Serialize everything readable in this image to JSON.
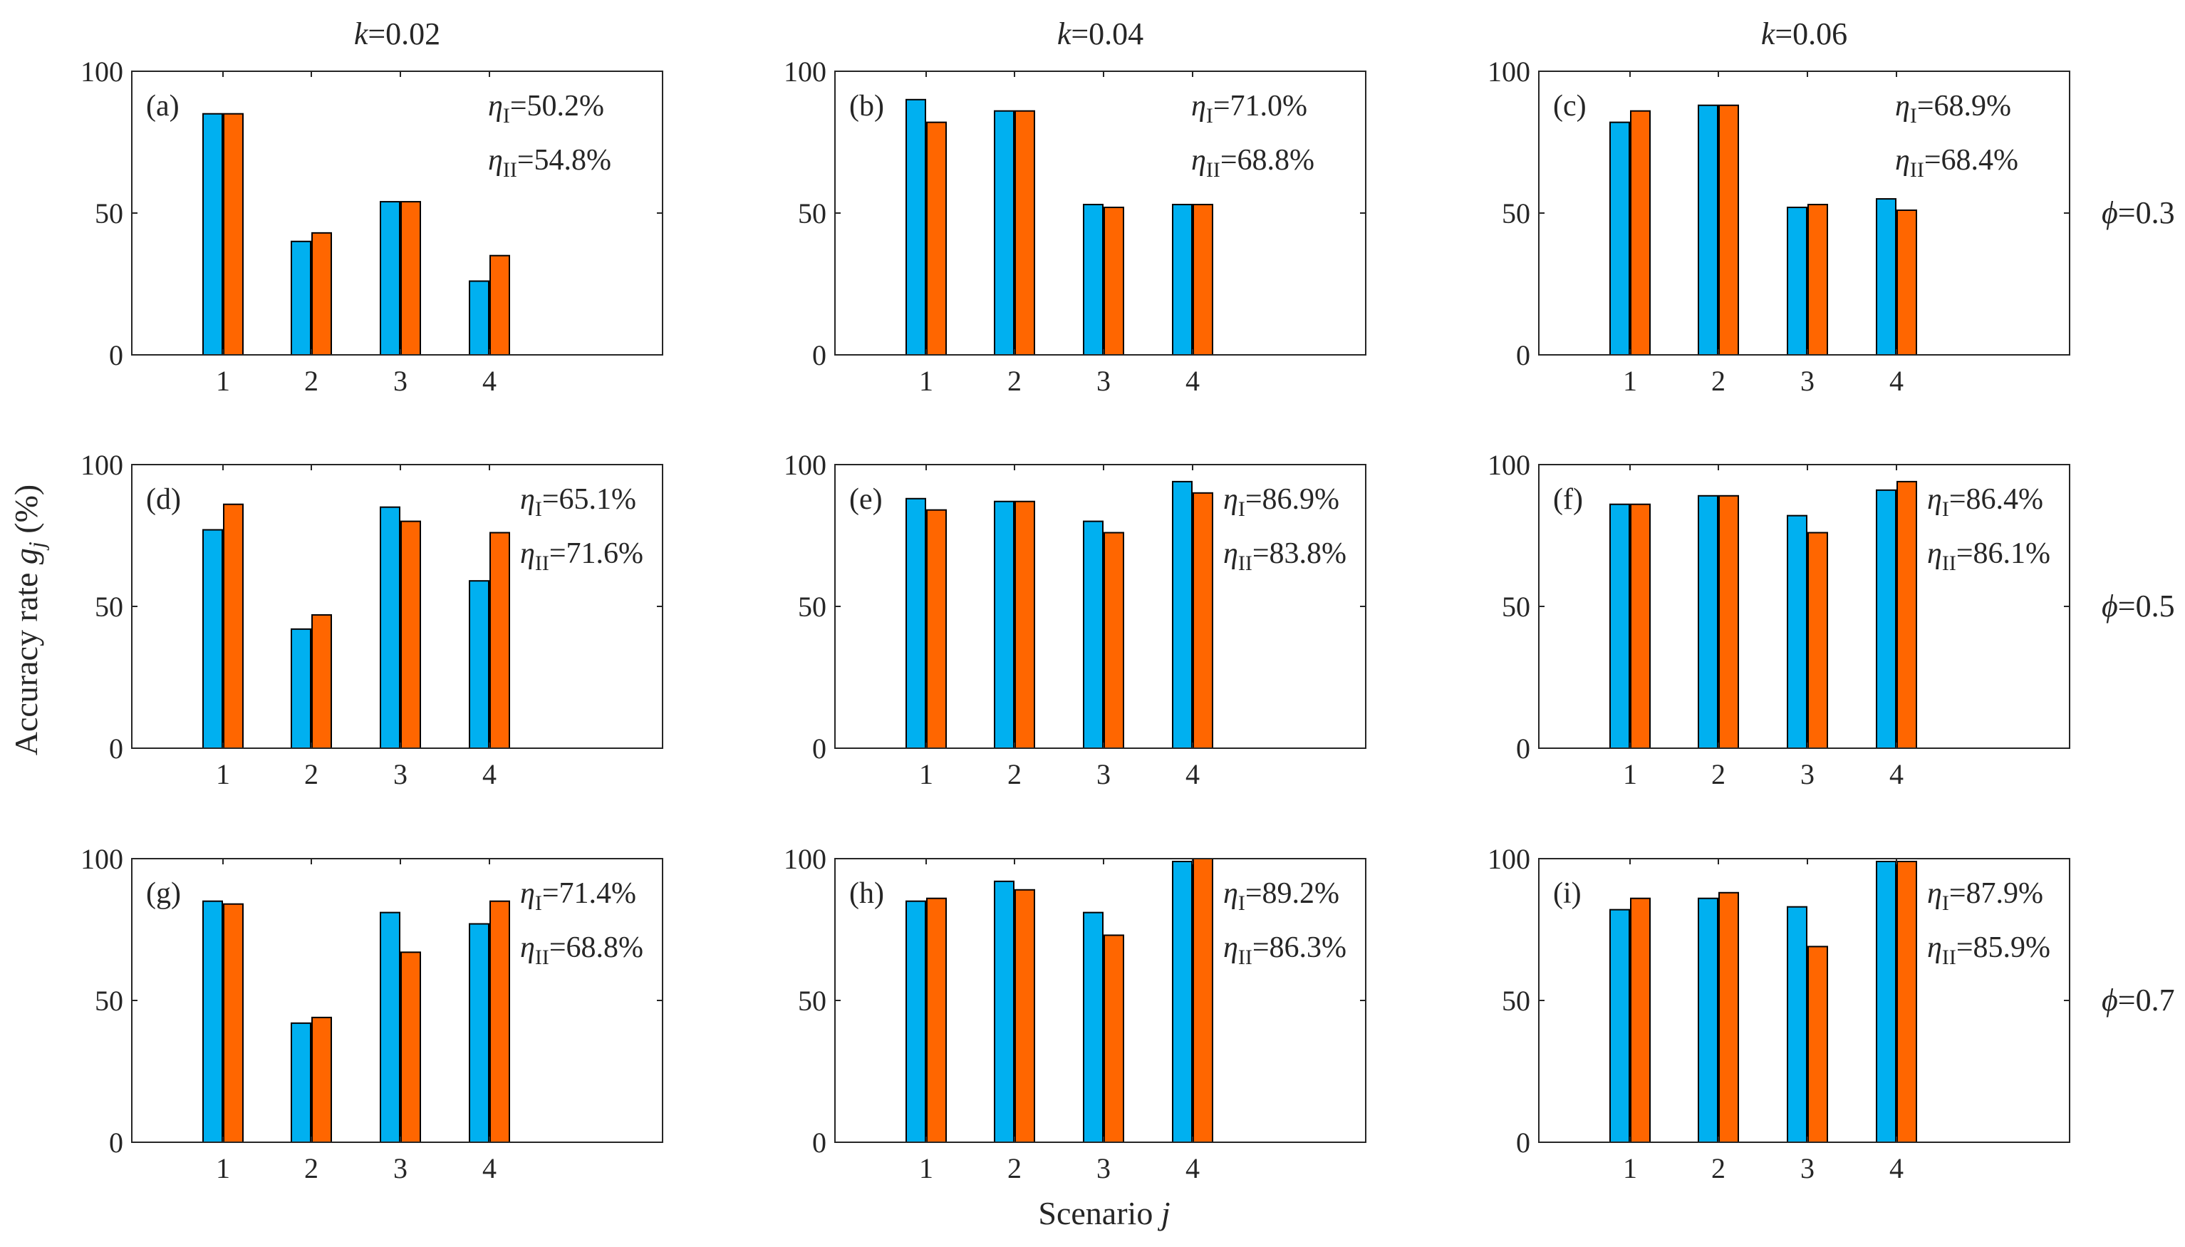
{
  "figure": {
    "ylabel": "Accuracy rate ",
    "ylabel_var": "g",
    "ylabel_sub": "j",
    "ylabel_unit": " (%)",
    "xlabel": "Scenario ",
    "xlabel_var": "j",
    "col_titles": [
      {
        "var": "k",
        "text": "=0.02"
      },
      {
        "var": "k",
        "text": "=0.04"
      },
      {
        "var": "k",
        "text": "=0.06"
      }
    ],
    "row_labels": [
      {
        "var": "ϕ",
        "text": "=0.3"
      },
      {
        "var": "ϕ",
        "text": "=0.5"
      },
      {
        "var": "ϕ",
        "text": "=0.7"
      }
    ],
    "colors": {
      "series1": "#00b0f0",
      "series2": "#ff6600",
      "edge": "#000000"
    }
  },
  "chart_data": [
    {
      "type": "bar",
      "panel": "(a)",
      "categories": [
        "1",
        "2",
        "3",
        "4"
      ],
      "ylim": [
        0,
        100
      ],
      "yticks": [
        "0",
        "50",
        "100"
      ],
      "series": [
        {
          "name": "η_I",
          "values": [
            85,
            40,
            54,
            26
          ]
        },
        {
          "name": "η_II",
          "values": [
            85,
            43,
            54,
            35
          ]
        }
      ],
      "eta_I": "=50.2%",
      "eta_II": "=54.8%"
    },
    {
      "type": "bar",
      "panel": "(b)",
      "categories": [
        "1",
        "2",
        "3",
        "4"
      ],
      "ylim": [
        0,
        100
      ],
      "yticks": [
        "0",
        "50",
        "100"
      ],
      "series": [
        {
          "name": "η_I",
          "values": [
            90,
            86,
            53,
            53
          ]
        },
        {
          "name": "η_II",
          "values": [
            82,
            86,
            52,
            53
          ]
        }
      ],
      "eta_I": "=71.0%",
      "eta_II": "=68.8%"
    },
    {
      "type": "bar",
      "panel": "(c)",
      "categories": [
        "1",
        "2",
        "3",
        "4"
      ],
      "ylim": [
        0,
        100
      ],
      "yticks": [
        "0",
        "50",
        "100"
      ],
      "series": [
        {
          "name": "η_I",
          "values": [
            82,
            88,
            52,
            55
          ]
        },
        {
          "name": "η_II",
          "values": [
            86,
            88,
            53,
            51
          ]
        }
      ],
      "eta_I": "=68.9%",
      "eta_II": "=68.4%"
    },
    {
      "type": "bar",
      "panel": "(d)",
      "categories": [
        "1",
        "2",
        "3",
        "4"
      ],
      "ylim": [
        0,
        100
      ],
      "yticks": [
        "0",
        "50",
        "100"
      ],
      "series": [
        {
          "name": "η_I",
          "values": [
            77,
            42,
            85,
            59
          ]
        },
        {
          "name": "η_II",
          "values": [
            86,
            47,
            80,
            76
          ]
        }
      ],
      "eta_I": "=65.1%",
      "eta_II": "=71.6%"
    },
    {
      "type": "bar",
      "panel": "(e)",
      "categories": [
        "1",
        "2",
        "3",
        "4"
      ],
      "ylim": [
        0,
        100
      ],
      "yticks": [
        "0",
        "50",
        "100"
      ],
      "series": [
        {
          "name": "η_I",
          "values": [
            88,
            87,
            80,
            94
          ]
        },
        {
          "name": "η_II",
          "values": [
            84,
            87,
            76,
            90
          ]
        }
      ],
      "eta_I": "=86.9%",
      "eta_II": "=83.8%"
    },
    {
      "type": "bar",
      "panel": "(f)",
      "categories": [
        "1",
        "2",
        "3",
        "4"
      ],
      "ylim": [
        0,
        100
      ],
      "yticks": [
        "0",
        "50",
        "100"
      ],
      "series": [
        {
          "name": "η_I",
          "values": [
            86,
            89,
            82,
            91
          ]
        },
        {
          "name": "η_II",
          "values": [
            86,
            89,
            76,
            94
          ]
        }
      ],
      "eta_I": "=86.4%",
      "eta_II": "=86.1%"
    },
    {
      "type": "bar",
      "panel": "(g)",
      "categories": [
        "1",
        "2",
        "3",
        "4"
      ],
      "ylim": [
        0,
        100
      ],
      "yticks": [
        "0",
        "50",
        "100"
      ],
      "series": [
        {
          "name": "η_I",
          "values": [
            85,
            42,
            81,
            77
          ]
        },
        {
          "name": "η_II",
          "values": [
            84,
            44,
            67,
            85
          ]
        }
      ],
      "eta_I": "=71.4%",
      "eta_II": "=68.8%"
    },
    {
      "type": "bar",
      "panel": "(h)",
      "categories": [
        "1",
        "2",
        "3",
        "4"
      ],
      "ylim": [
        0,
        100
      ],
      "yticks": [
        "0",
        "50",
        "100"
      ],
      "series": [
        {
          "name": "η_I",
          "values": [
            85,
            92,
            81,
            99
          ]
        },
        {
          "name": "η_II",
          "values": [
            86,
            89,
            73,
            100
          ]
        }
      ],
      "eta_I": "=89.2%",
      "eta_II": "=86.3%"
    },
    {
      "type": "bar",
      "panel": "(i)",
      "categories": [
        "1",
        "2",
        "3",
        "4"
      ],
      "ylim": [
        0,
        100
      ],
      "yticks": [
        "0",
        "50",
        "100"
      ],
      "series": [
        {
          "name": "η_I",
          "values": [
            82,
            86,
            83,
            99
          ]
        },
        {
          "name": "η_II",
          "values": [
            86,
            88,
            69,
            99
          ]
        }
      ],
      "eta_I": "=87.9%",
      "eta_II": "=85.9%"
    }
  ]
}
